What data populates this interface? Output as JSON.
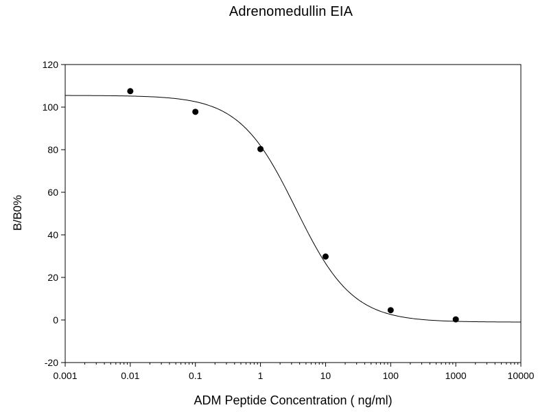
{
  "chart_data": {
    "type": "scatter",
    "title": "Adrenomedullin EIA",
    "xlabel": "ADM Peptide Concentration ( ng/ml)",
    "ylabel": "B/B0%",
    "xscale": "log",
    "xlim": [
      0.001,
      10000
    ],
    "ylim": [
      -20,
      120
    ],
    "x_ticks": [
      0.001,
      0.01,
      0.1,
      1,
      10,
      100,
      1000,
      10000
    ],
    "x_tick_labels": [
      "0.001",
      "0.01",
      "0.1",
      "1",
      "10",
      "100",
      "1000",
      "10000"
    ],
    "y_ticks": [
      -20,
      0,
      20,
      40,
      60,
      80,
      100,
      120
    ],
    "y_tick_labels": [
      "-20",
      "0",
      "20",
      "40",
      "60",
      "80",
      "100",
      "120"
    ],
    "grid": false,
    "legend": "none",
    "series": [
      {
        "points": [
          {
            "x": 0.01,
            "y": 107.5
          },
          {
            "x": 0.1,
            "y": 97.8
          },
          {
            "x": 1,
            "y": 80.3
          },
          {
            "x": 10,
            "y": 29.8
          },
          {
            "x": 100,
            "y": 4.6
          },
          {
            "x": 1000,
            "y": 0.3
          }
        ],
        "marker": "circle",
        "color": "#000000"
      }
    ],
    "fit_curve": {
      "type": "four-parameter logistic",
      "top": 105.5,
      "bottom": -1.0,
      "ec50": 3.5,
      "hill": 1.0,
      "color": "#000000"
    }
  }
}
